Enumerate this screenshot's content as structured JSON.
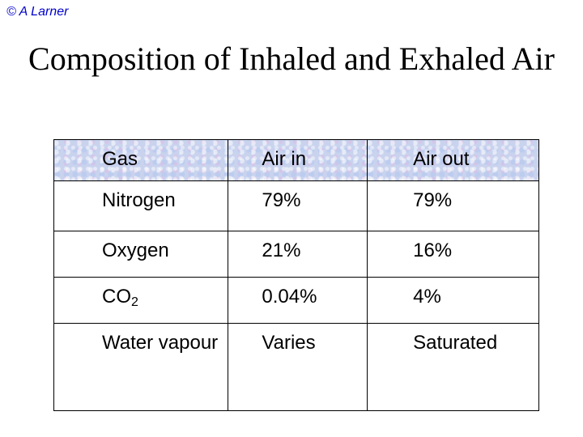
{
  "copyright": "© A Larner",
  "title": "Composition of Inhaled and Exhaled Air",
  "table": {
    "headers": [
      "Gas",
      "Air in",
      "Air out"
    ],
    "rows": [
      {
        "gas": "Nitrogen",
        "gas_sub": "",
        "air_in": "79%",
        "air_out": "79%"
      },
      {
        "gas": "Oxygen",
        "gas_sub": "",
        "air_in": "21%",
        "air_out": "16%"
      },
      {
        "gas": "CO",
        "gas_sub": "2",
        "air_in": "0.04%",
        "air_out": "4%"
      },
      {
        "gas": "Water vapour",
        "gas_sub": "",
        "air_in": "Varies",
        "air_out": "Saturated"
      }
    ]
  },
  "colors": {
    "copyright": "#0000cc",
    "header_bg": "#c9d3ee"
  }
}
